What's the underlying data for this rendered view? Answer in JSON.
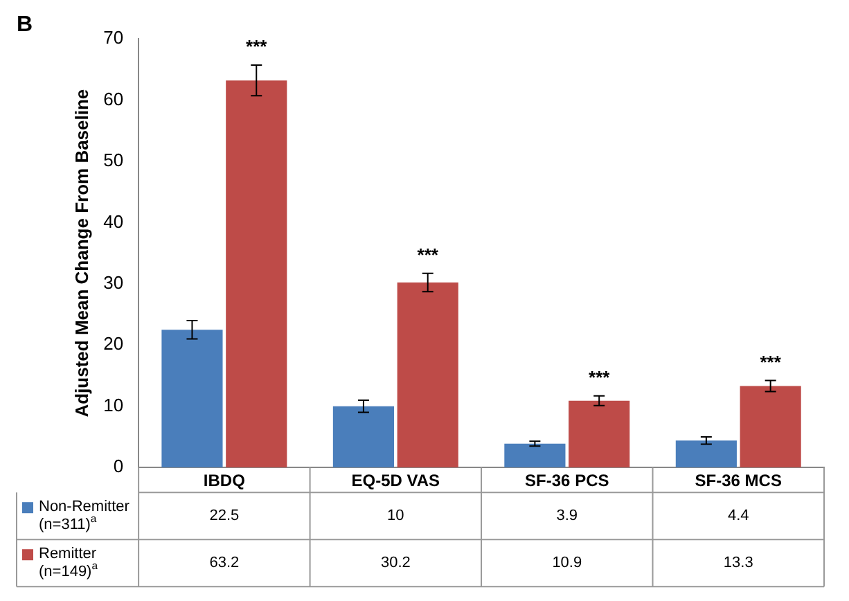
{
  "chart_data": {
    "type": "bar",
    "ylabel": "Adjusted Mean Change From Baseline",
    "categories": [
      "IBDQ",
      "EQ-5D VAS",
      "SF-36 PCS",
      "SF-36 MCS"
    ],
    "series": [
      {
        "name": "Non-Remitter (n=311)$^{a}$",
        "color": "#4a7ebb",
        "values": [
          22.5,
          10,
          3.9,
          4.4
        ],
        "errors": [
          1.5,
          1,
          0.4,
          0.6
        ]
      },
      {
        "name": "Remitter (n=149)$^{a}$",
        "color": "#be4b48",
        "values": [
          63.2,
          30.2,
          10.9,
          13.3
        ],
        "errors": [
          2.5,
          1.5,
          0.8,
          0.9
        ]
      }
    ],
    "ylim": [
      0,
      70
    ],
    "yticks": [
      0,
      10,
      20,
      30,
      40,
      50,
      60,
      70
    ],
    "grid": false,
    "legend": "bottom left",
    "data_labels": true,
    "annotations": [
      "B",
      "***",
      "***",
      "***",
      "***"
    ]
  }
}
